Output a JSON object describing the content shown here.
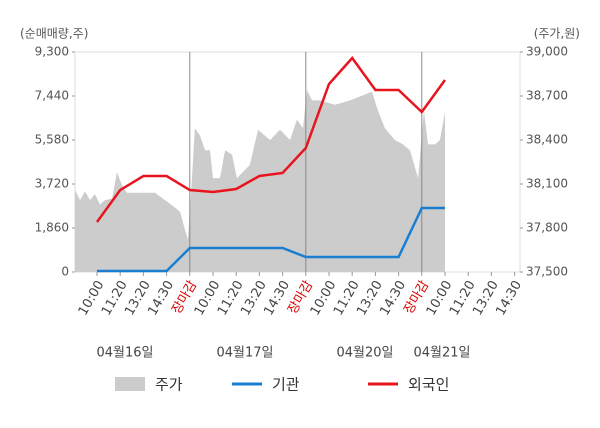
{
  "chart_data": {
    "type": "bar-line",
    "left_axis_title": "(순매매량,주)",
    "right_axis_title": "(주가,원)",
    "categories": [
      "10:00",
      "11:20",
      "13:20",
      "14:30",
      "장마감",
      "10:00",
      "11:20",
      "13:20",
      "14:30",
      "장마감",
      "10:00",
      "11:20",
      "13:20",
      "14:30",
      "장마감",
      "10:00",
      "11:20",
      "13:20",
      "14:30"
    ],
    "date_labels": [
      "04월16일",
      "04월17일",
      "04월20일",
      "04월21일"
    ],
    "ylim": [
      0,
      9300
    ],
    "yticks": [
      0,
      {
        "value": 1860,
        "label": "1,860"
      },
      {
        "value": 3720,
        "label": "3,720"
      },
      {
        "value": 5580,
        "label": "5,580"
      },
      {
        "value": 7440,
        "label": "7,440"
      },
      {
        "value": 9300,
        "label": "9,300"
      }
    ],
    "y2lim": [
      37500,
      39000
    ],
    "y2ticks": [
      {
        "value": 37500,
        "label": "37,500"
      },
      {
        "value": 37800,
        "label": "37,800"
      },
      {
        "value": 38100,
        "label": "38,100"
      },
      {
        "value": 38400,
        "label": "38,400"
      },
      {
        "value": 38700,
        "label": "38,700"
      },
      {
        "value": 39000,
        "label": "39,000"
      }
    ],
    "series": [
      {
        "name": "주가",
        "type": "area",
        "axis": "y2",
        "color": "#cccccc",
        "x": [
          -0.95,
          -0.73,
          -0.52,
          -0.3,
          -0.09,
          0.13,
          0.34,
          0.65,
          0.86,
          1.08,
          1.29,
          1.85,
          2.5,
          2.93,
          3.36,
          3.58,
          3.79,
          3.92,
          4.09,
          4.22,
          4.44,
          4.66,
          4.87,
          5.0,
          5.3,
          5.52,
          5.82,
          6.03,
          6.59,
          6.94,
          7.46,
          7.89,
          8.32,
          8.62,
          8.88,
          9.05,
          9.27,
          9.61,
          10.26,
          10.91,
          11.55,
          11.85,
          12.11,
          12.41,
          12.84,
          13.19,
          13.49,
          13.84,
          14.09,
          14.27,
          14.57,
          14.78,
          15.0
        ],
        "values": [
          38060,
          37990,
          38050,
          37990,
          38030,
          37960,
          37990,
          38000,
          38180,
          38090,
          38040,
          38040,
          38040,
          37990,
          37940,
          37910,
          37790,
          37720,
          38130,
          38480,
          38430,
          38330,
          38330,
          38140,
          38140,
          38330,
          38300,
          38140,
          38230,
          38470,
          38400,
          38470,
          38400,
          38540,
          38480,
          38740,
          38670,
          38670,
          38640,
          38670,
          38710,
          38730,
          38600,
          38480,
          38400,
          38370,
          38330,
          38140,
          38600,
          38370,
          38370,
          38400,
          38590
        ]
      },
      {
        "name": "기관",
        "type": "line",
        "color": "#1a7fd0",
        "values": [
          40,
          40,
          40,
          40,
          1015,
          1015,
          1015,
          1015,
          1015,
          634,
          634,
          634,
          634,
          634,
          2705,
          2705,
          null,
          null,
          null
        ]
      },
      {
        "name": "외국인",
        "type": "line",
        "color": "#e8141e",
        "values": [
          2114,
          3466,
          4058,
          4058,
          3466,
          3382,
          3508,
          4058,
          4185,
          5242,
          7947,
          9046,
          7693,
          7693,
          6763,
          8116,
          null,
          null,
          null
        ]
      }
    ]
  }
}
